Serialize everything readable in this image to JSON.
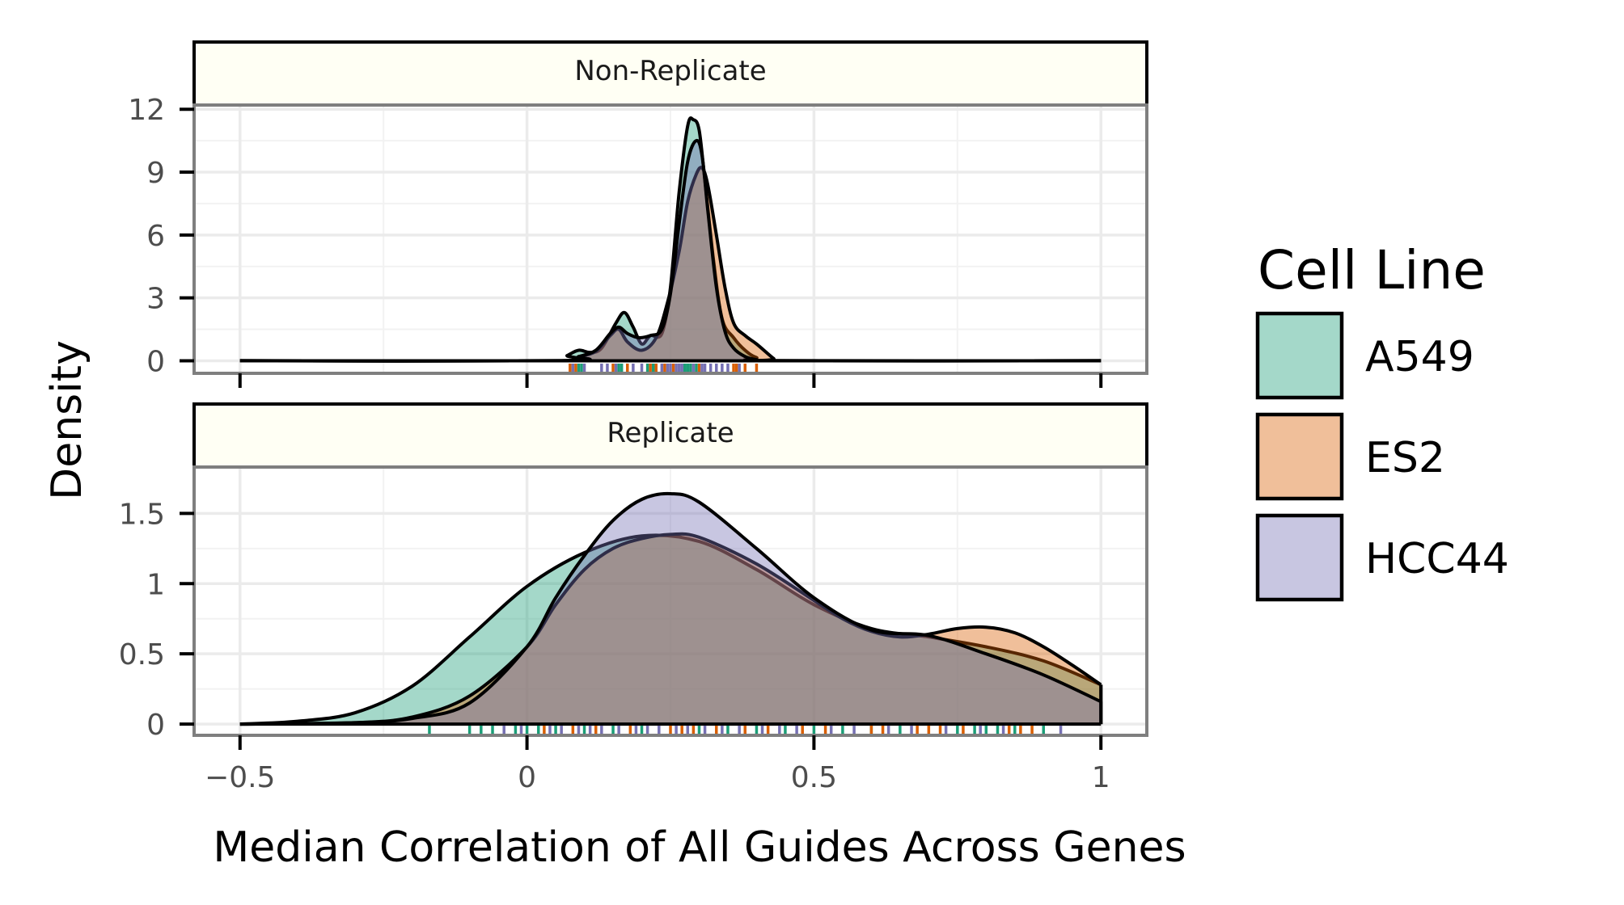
{
  "chart_data": {
    "type": "area",
    "subtype": "density",
    "xlabel": "Median Correlation of All Guides Across Genes",
    "ylabel": "Density",
    "xlim": [
      -0.58,
      1.08
    ],
    "x_ticks": [
      -0.5,
      0,
      0.5,
      1
    ],
    "x_tick_labels": [
      "−0.5",
      "0",
      "0.5",
      "1"
    ],
    "legend": {
      "title": "Cell Line",
      "placement": "right",
      "entries": [
        {
          "label": "A549",
          "color": "#1b9e77"
        },
        {
          "label": "ES2",
          "color": "#d95f02"
        },
        {
          "label": "HCC44",
          "color": "#7570b3"
        }
      ]
    },
    "panels": [
      {
        "strip": "Non-Replicate",
        "ylim": [
          -0.6,
          12.2
        ],
        "y_ticks": [
          0,
          3,
          6,
          9,
          12
        ],
        "y_tick_labels": [
          "0",
          "3",
          "6",
          "9",
          "12"
        ],
        "series": [
          {
            "name": "A549",
            "color": "#1b9e77",
            "x": [
              -0.5,
              0.05,
              0.07,
              0.09,
              0.11,
              0.13,
              0.155,
              0.17,
              0.185,
              0.2,
              0.215,
              0.235,
              0.25,
              0.265,
              0.28,
              0.29,
              0.3,
              0.31,
              0.325,
              0.34,
              0.36,
              0.38,
              0.4,
              0.43,
              1.0
            ],
            "y": [
              0,
              0,
              0.25,
              0.5,
              0.4,
              0.6,
              1.8,
              2.3,
              1.6,
              0.8,
              1.2,
              1.3,
              3.5,
              8.0,
              11.2,
              11.5,
              11.0,
              8.6,
              4.8,
              2.0,
              1.1,
              0.5,
              0.15,
              0,
              0
            ]
          },
          {
            "name": "ES2",
            "color": "#d95f02",
            "x": [
              -0.5,
              0.06,
              0.09,
              0.12,
              0.145,
              0.16,
              0.175,
              0.2,
              0.225,
              0.245,
              0.265,
              0.28,
              0.295,
              0.305,
              0.315,
              0.33,
              0.345,
              0.36,
              0.38,
              0.4,
              0.43,
              0.44,
              1.0
            ],
            "y": [
              0,
              0,
              0.2,
              0.45,
              1.2,
              1.5,
              0.9,
              0.5,
              1.1,
              2.8,
              5.2,
              7.6,
              8.9,
              9.2,
              8.4,
              6.0,
              3.5,
              1.8,
              1.2,
              0.8,
              0.1,
              0,
              0
            ]
          },
          {
            "name": "HCC44",
            "color": "#7570b3",
            "x": [
              -0.5,
              0.06,
              0.09,
              0.12,
              0.145,
              0.16,
              0.175,
              0.195,
              0.215,
              0.235,
              0.25,
              0.265,
              0.28,
              0.295,
              0.305,
              0.315,
              0.33,
              0.345,
              0.36,
              0.38,
              0.4,
              0.43,
              1.0
            ],
            "y": [
              0,
              0,
              0.2,
              0.5,
              1.3,
              1.6,
              1.3,
              1.1,
              1.2,
              1.5,
              3.2,
              6.5,
              9.5,
              10.5,
              9.8,
              7.2,
              3.5,
              1.4,
              0.6,
              0.2,
              0.05,
              0,
              0
            ]
          }
        ],
        "rug": [
          {
            "name": "A549",
            "x": [
              0.09,
              0.095,
              0.16,
              0.165,
              0.21,
              0.22,
              0.275,
              0.28,
              0.285,
              0.295
            ]
          },
          {
            "name": "ES2",
            "x": [
              0.075,
              0.085,
              0.15,
              0.175,
              0.215,
              0.225,
              0.24,
              0.255,
              0.3,
              0.36,
              0.365,
              0.38,
              0.4
            ]
          },
          {
            "name": "HCC44",
            "x": [
              0.08,
              0.1,
              0.13,
              0.14,
              0.155,
              0.185,
              0.2,
              0.235,
              0.245,
              0.25,
              0.26,
              0.265,
              0.27,
              0.29,
              0.305,
              0.31,
              0.32,
              0.33,
              0.34,
              0.35,
              0.37
            ]
          }
        ]
      },
      {
        "strip": "Replicate",
        "ylim": [
          -0.08,
          1.83
        ],
        "y_ticks": [
          0,
          0.5,
          1,
          1.5
        ],
        "y_tick_labels": [
          "0",
          "0.5",
          "1",
          "1.5"
        ],
        "series": [
          {
            "name": "A549",
            "color": "#1b9e77",
            "x": [
              -0.5,
              -0.4,
              -0.3,
              -0.2,
              -0.1,
              0.0,
              0.1,
              0.2,
              0.3,
              0.4,
              0.5,
              0.6,
              0.7,
              0.8,
              0.9,
              1.0
            ],
            "y": [
              0,
              0.02,
              0.08,
              0.27,
              0.62,
              0.98,
              1.22,
              1.34,
              1.3,
              1.1,
              0.85,
              0.68,
              0.62,
              0.55,
              0.45,
              0.28
            ]
          },
          {
            "name": "ES2",
            "color": "#d95f02",
            "x": [
              -0.5,
              -0.3,
              -0.2,
              -0.1,
              0.0,
              0.05,
              0.1,
              0.15,
              0.2,
              0.25,
              0.3,
              0.4,
              0.5,
              0.55,
              0.6,
              0.65,
              0.7,
              0.75,
              0.8,
              0.85,
              0.9,
              0.95,
              1.0
            ],
            "y": [
              0,
              0.01,
              0.05,
              0.2,
              0.55,
              0.85,
              1.1,
              1.25,
              1.32,
              1.35,
              1.33,
              1.14,
              0.88,
              0.75,
              0.66,
              0.62,
              0.64,
              0.68,
              0.69,
              0.65,
              0.55,
              0.42,
              0.28
            ]
          },
          {
            "name": "HCC44",
            "color": "#7570b3",
            "x": [
              -0.5,
              -0.3,
              -0.2,
              -0.1,
              0.0,
              0.05,
              0.1,
              0.15,
              0.2,
              0.25,
              0.3,
              0.4,
              0.5,
              0.6,
              0.7,
              0.8,
              0.9,
              1.0
            ],
            "y": [
              0,
              0.01,
              0.04,
              0.15,
              0.55,
              0.9,
              1.2,
              1.45,
              1.6,
              1.64,
              1.58,
              1.25,
              0.9,
              0.67,
              0.63,
              0.5,
              0.35,
              0.16
            ]
          }
        ],
        "rug": [
          {
            "name": "A549",
            "x": [
              -0.17,
              -0.1,
              -0.08,
              -0.06,
              -0.02,
              0.0,
              0.02,
              0.05,
              0.1,
              0.15,
              0.2,
              0.3,
              0.35,
              0.4,
              0.45,
              0.5,
              0.55,
              0.6,
              0.65,
              0.75,
              0.78,
              0.8,
              0.82,
              0.85,
              0.9
            ]
          },
          {
            "name": "ES2",
            "x": [
              0.03,
              0.08,
              0.12,
              0.18,
              0.25,
              0.27,
              0.29,
              0.33,
              0.38,
              0.42,
              0.48,
              0.52,
              0.6,
              0.62,
              0.68,
              0.7,
              0.72,
              0.76,
              0.84,
              0.86,
              0.88
            ]
          },
          {
            "name": "HCC44",
            "x": [
              -0.04,
              -0.01,
              0.04,
              0.06,
              0.09,
              0.11,
              0.13,
              0.16,
              0.19,
              0.21,
              0.23,
              0.26,
              0.28,
              0.31,
              0.34,
              0.37,
              0.41,
              0.44,
              0.47,
              0.53,
              0.57,
              0.63,
              0.67,
              0.73,
              0.79,
              0.83,
              0.93
            ]
          }
        ]
      }
    ]
  }
}
